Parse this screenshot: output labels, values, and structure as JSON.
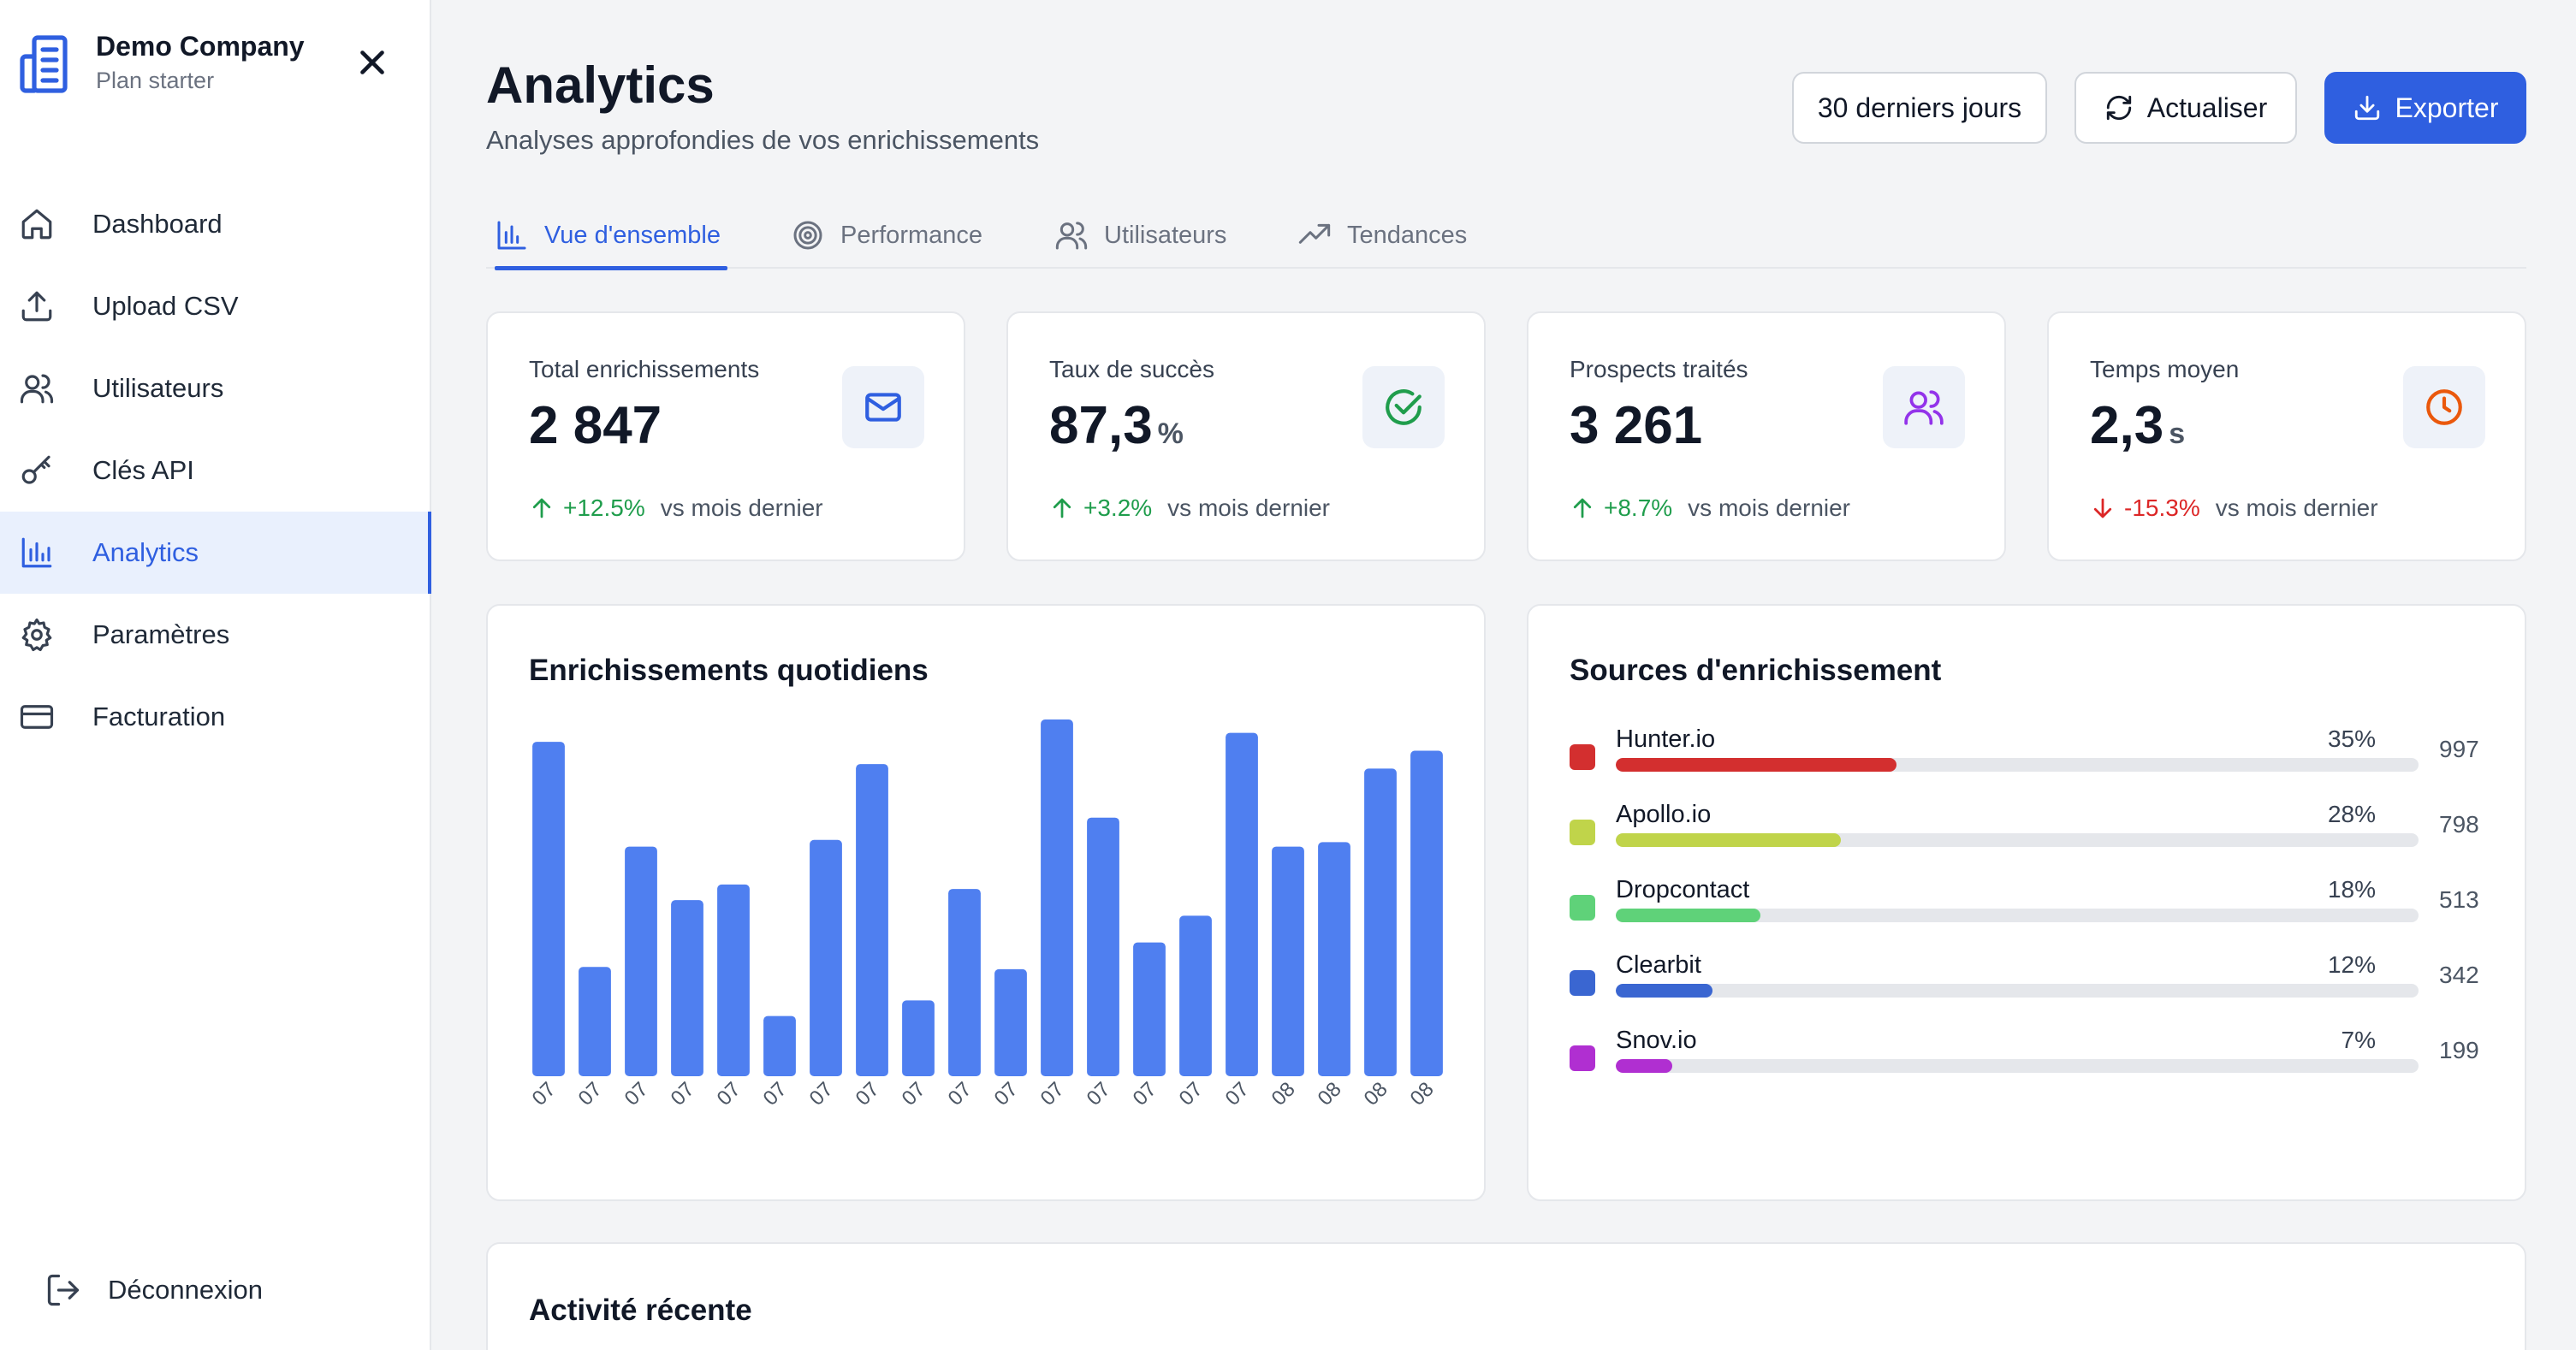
{
  "sidebar": {
    "company": "Demo Company",
    "plan": "Plan starter",
    "items": [
      {
        "label": "Dashboard",
        "icon": "home-icon"
      },
      {
        "label": "Upload CSV",
        "icon": "upload-icon"
      },
      {
        "label": "Utilisateurs",
        "icon": "users-icon"
      },
      {
        "label": "Clés API",
        "icon": "key-icon"
      },
      {
        "label": "Analytics",
        "icon": "bar-chart-icon",
        "active": true
      },
      {
        "label": "Paramètres",
        "icon": "gear-icon"
      },
      {
        "label": "Facturation",
        "icon": "credit-card-icon"
      }
    ],
    "logout": "Déconnexion"
  },
  "header": {
    "title": "Analytics",
    "subtitle": "Analyses approfondies de vos enrichissements",
    "range": "30 derniers jours",
    "refresh": "Actualiser",
    "export": "Exporter"
  },
  "tabs": [
    {
      "label": "Vue d'ensemble",
      "icon": "bar-chart-icon"
    },
    {
      "label": "Performance",
      "icon": "target-icon"
    },
    {
      "label": "Utilisateurs",
      "icon": "users-icon"
    },
    {
      "label": "Tendances",
      "icon": "trending-up-icon"
    }
  ],
  "stats": [
    {
      "label": "Total enrichissements",
      "value": "2 847",
      "unit": "",
      "change": "+12.5%",
      "direction": "up",
      "vs": "vs mois dernier",
      "icon": "mail-icon",
      "icon_color": "#2f5fe0"
    },
    {
      "label": "Taux de succès",
      "value": "87,3",
      "unit": "%",
      "change": "+3.2%",
      "direction": "up",
      "vs": "vs mois dernier",
      "icon": "check-circle-icon",
      "icon_color": "#1f9d4c"
    },
    {
      "label": "Prospects traités",
      "value": "3 261",
      "unit": "",
      "change": "+8.7%",
      "direction": "up",
      "vs": "vs mois dernier",
      "icon": "users-icon",
      "icon_color": "#9333ea"
    },
    {
      "label": "Temps moyen",
      "value": "2,3",
      "unit": "s",
      "change": "-15.3%",
      "direction": "down",
      "vs": "vs mois dernier",
      "icon": "clock-icon",
      "icon_color": "#ea580c"
    }
  ],
  "daily_chart": {
    "title": "Enrichissements quotidiens"
  },
  "chart_data": {
    "type": "bar",
    "categories": [
      "07",
      "07",
      "07",
      "07",
      "07",
      "07",
      "07",
      "07",
      "07",
      "07",
      "07",
      "07",
      "07",
      "07",
      "07",
      "07",
      "08",
      "08",
      "08",
      "08"
    ],
    "values": [
      150,
      49,
      103,
      79,
      86,
      27,
      106,
      140,
      34,
      84,
      48,
      160,
      116,
      60,
      72,
      154,
      103,
      105,
      138,
      146
    ],
    "ylim": [
      0,
      165
    ],
    "color": "#4f7ff0",
    "title": "Enrichissements quotidiens",
    "xlabel": "",
    "ylabel": "",
    "grid": false
  },
  "sources": {
    "title": "Sources d'enrichissement",
    "items": [
      {
        "name": "Hunter.io",
        "pct": "35%",
        "fraction": 0.35,
        "count": "997",
        "color": "#d32f2f"
      },
      {
        "name": "Apollo.io",
        "pct": "28%",
        "fraction": 0.28,
        "count": "798",
        "color": "#c0d44a"
      },
      {
        "name": "Dropcontact",
        "pct": "18%",
        "fraction": 0.18,
        "count": "513",
        "color": "#5fd279"
      },
      {
        "name": "Clearbit",
        "pct": "12%",
        "fraction": 0.12,
        "count": "342",
        "color": "#3a66d1"
      },
      {
        "name": "Snov.io",
        "pct": "7%",
        "fraction": 0.07,
        "count": "199",
        "color": "#b02fd1"
      }
    ]
  },
  "activity": {
    "title": "Activité récente"
  }
}
